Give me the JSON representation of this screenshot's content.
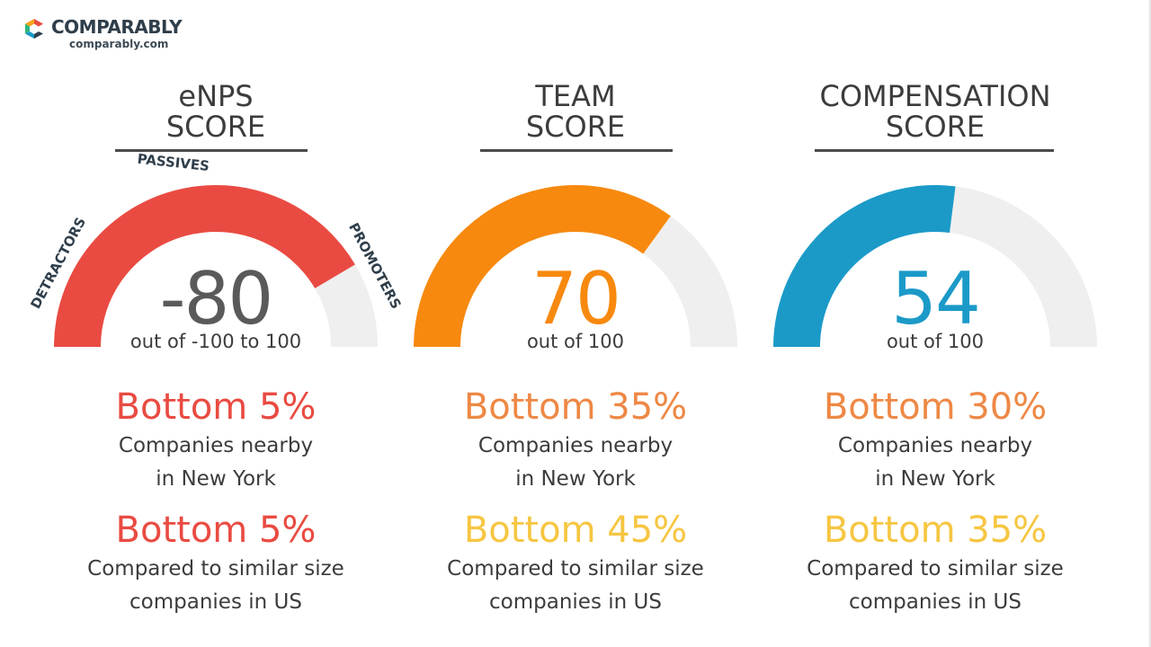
{
  "brand": {
    "name": "COMPARABLY",
    "url": "comparably.com",
    "colors": [
      "#e94b42",
      "#f6a21a",
      "#2eb67d",
      "#1b9ac8"
    ]
  },
  "colors": {
    "track": "#efefef",
    "title": "#3c3c3c"
  },
  "chart_data": [
    {
      "type": "gauge",
      "title": "eNPS\nSCORE",
      "value": -80,
      "range": [
        -100,
        100
      ],
      "subtitle": "out of -100 to 100",
      "value_color": "#5a5a5a",
      "arc_color": "#e94b42",
      "arc_labels": [
        "DETRACTORS",
        "PASSIVES",
        "PROMOTERS"
      ],
      "rankings": [
        {
          "label": "Bottom 5%",
          "color": "#e94b42",
          "line1": "Companies nearby",
          "line2": "in New York"
        },
        {
          "label": "Bottom 5%",
          "color": "#e94b42",
          "line1": "Compared to similar size",
          "line2": "companies in US"
        }
      ]
    },
    {
      "type": "gauge",
      "title": "TEAM\nSCORE",
      "value": 70,
      "range": [
        0,
        100
      ],
      "subtitle": "out of 100",
      "value_color": "#f7890f",
      "arc_color": "#f7890f",
      "rankings": [
        {
          "label": "Bottom 35%",
          "color": "#ee8845",
          "line1": "Companies nearby",
          "line2": "in New York"
        },
        {
          "label": "Bottom 45%",
          "color": "#f6c642",
          "line1": "Compared to similar size",
          "line2": "companies in US"
        }
      ]
    },
    {
      "type": "gauge",
      "title": "COMPENSATION\nSCORE",
      "value": 54,
      "range": [
        0,
        100
      ],
      "subtitle": "out of 100",
      "value_color": "#1b9ac8",
      "arc_color": "#1b9ac8",
      "rankings": [
        {
          "label": "Bottom 30%",
          "color": "#ee8845",
          "line1": "Companies nearby",
          "line2": "in New York"
        },
        {
          "label": "Bottom 35%",
          "color": "#f6c642",
          "line1": "Compared to similar size",
          "line2": "companies in US"
        }
      ]
    }
  ]
}
